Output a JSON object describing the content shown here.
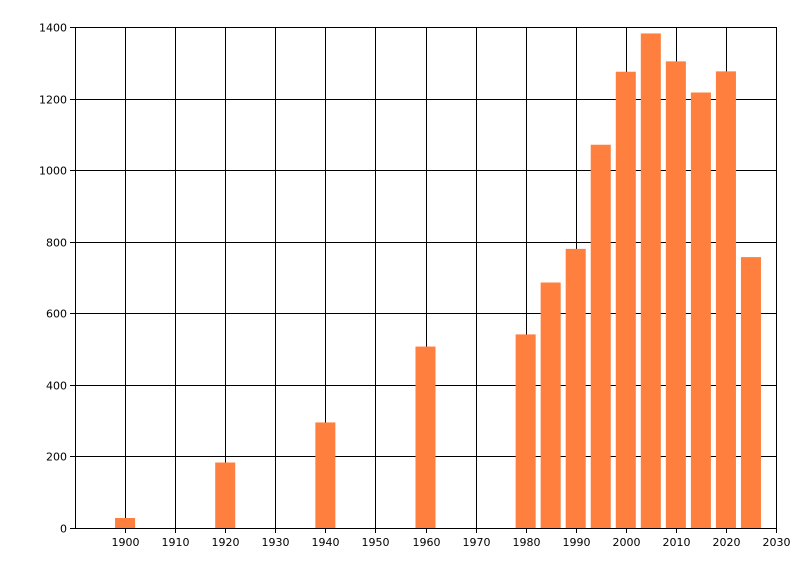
{
  "chart_data": {
    "type": "bar",
    "title": "",
    "xlabel": "",
    "ylabel": "",
    "xlim": [
      1890,
      2030
    ],
    "ylim": [
      0,
      1400
    ],
    "x_ticks": [
      1900,
      1910,
      1920,
      1930,
      1940,
      1950,
      1960,
      1970,
      1980,
      1990,
      2000,
      2010,
      2020,
      2030
    ],
    "y_ticks": [
      0,
      200,
      400,
      600,
      800,
      1000,
      1200,
      1400
    ],
    "grid": true,
    "legend": "none",
    "series": [
      {
        "color": "#ff7f3f",
        "points": [
          {
            "x": 1900,
            "y": 28
          },
          {
            "x": 1920,
            "y": 183
          },
          {
            "x": 1940,
            "y": 295
          },
          {
            "x": 1960,
            "y": 507
          },
          {
            "x": 1980,
            "y": 541
          },
          {
            "x": 1985,
            "y": 686
          },
          {
            "x": 1990,
            "y": 780
          },
          {
            "x": 1995,
            "y": 1071
          },
          {
            "x": 2000,
            "y": 1275
          },
          {
            "x": 2005,
            "y": 1382
          },
          {
            "x": 2010,
            "y": 1304
          },
          {
            "x": 2015,
            "y": 1217
          },
          {
            "x": 2020,
            "y": 1276
          },
          {
            "x": 2025,
            "y": 757
          }
        ]
      }
    ]
  }
}
